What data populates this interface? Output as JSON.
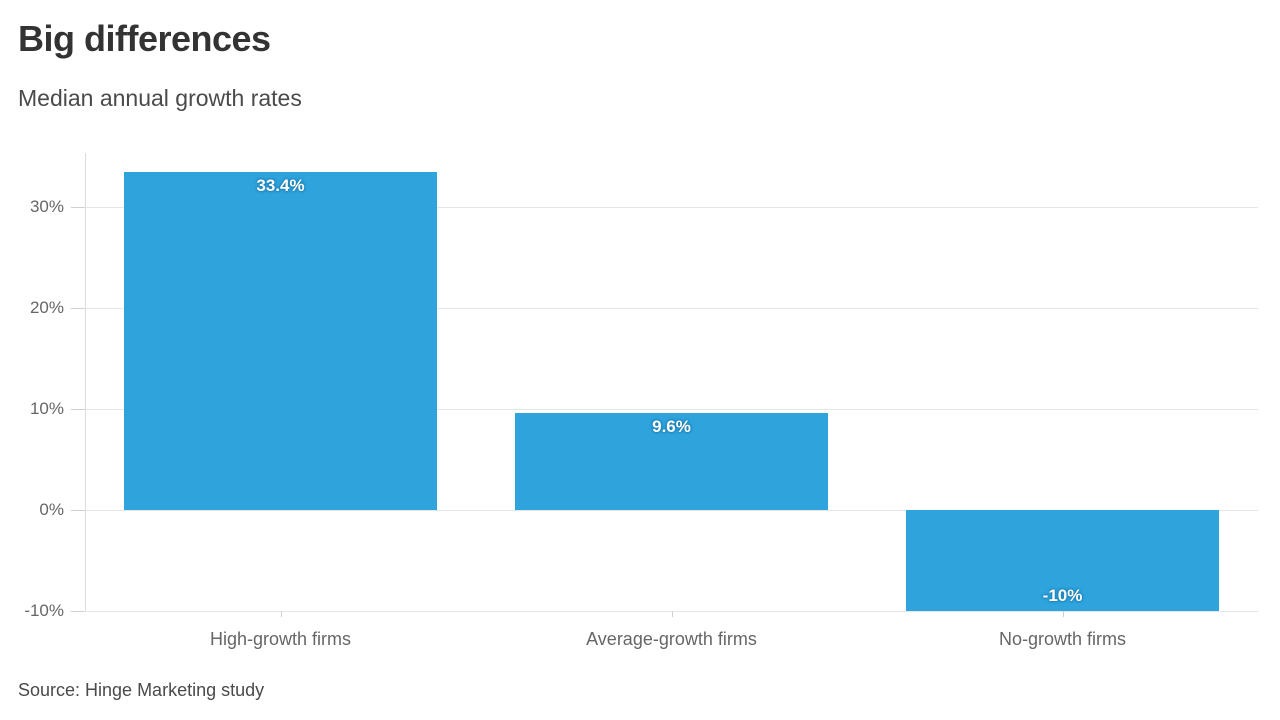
{
  "header": {
    "title": "Big differences",
    "subtitle": "Median annual growth rates"
  },
  "footer": {
    "source": "Source: Hinge Marketing study"
  },
  "chart_data": {
    "type": "bar",
    "title": "Big differences",
    "subtitle": "Median annual growth rates",
    "source": "Source: Hinge Marketing study",
    "categories": [
      "High-growth firms",
      "Average-growth firms",
      "No-growth firms"
    ],
    "values": [
      33.4,
      9.6,
      -10
    ],
    "value_labels": [
      "33.4%",
      "9.6%",
      "-10%"
    ],
    "xlabel": "",
    "ylabel": "",
    "ylim": [
      -10,
      35.3
    ],
    "yticks": [
      -10,
      0,
      10,
      20,
      30
    ],
    "ytick_labels": [
      "-10%",
      "0%",
      "10%",
      "20%",
      "30%"
    ],
    "grid": true,
    "legend": false,
    "bar_color": "#2ea3dc",
    "bar_label_color": "#ffffff",
    "gridline_color": "#e6e6e6",
    "axis_text_color": "#666666"
  }
}
